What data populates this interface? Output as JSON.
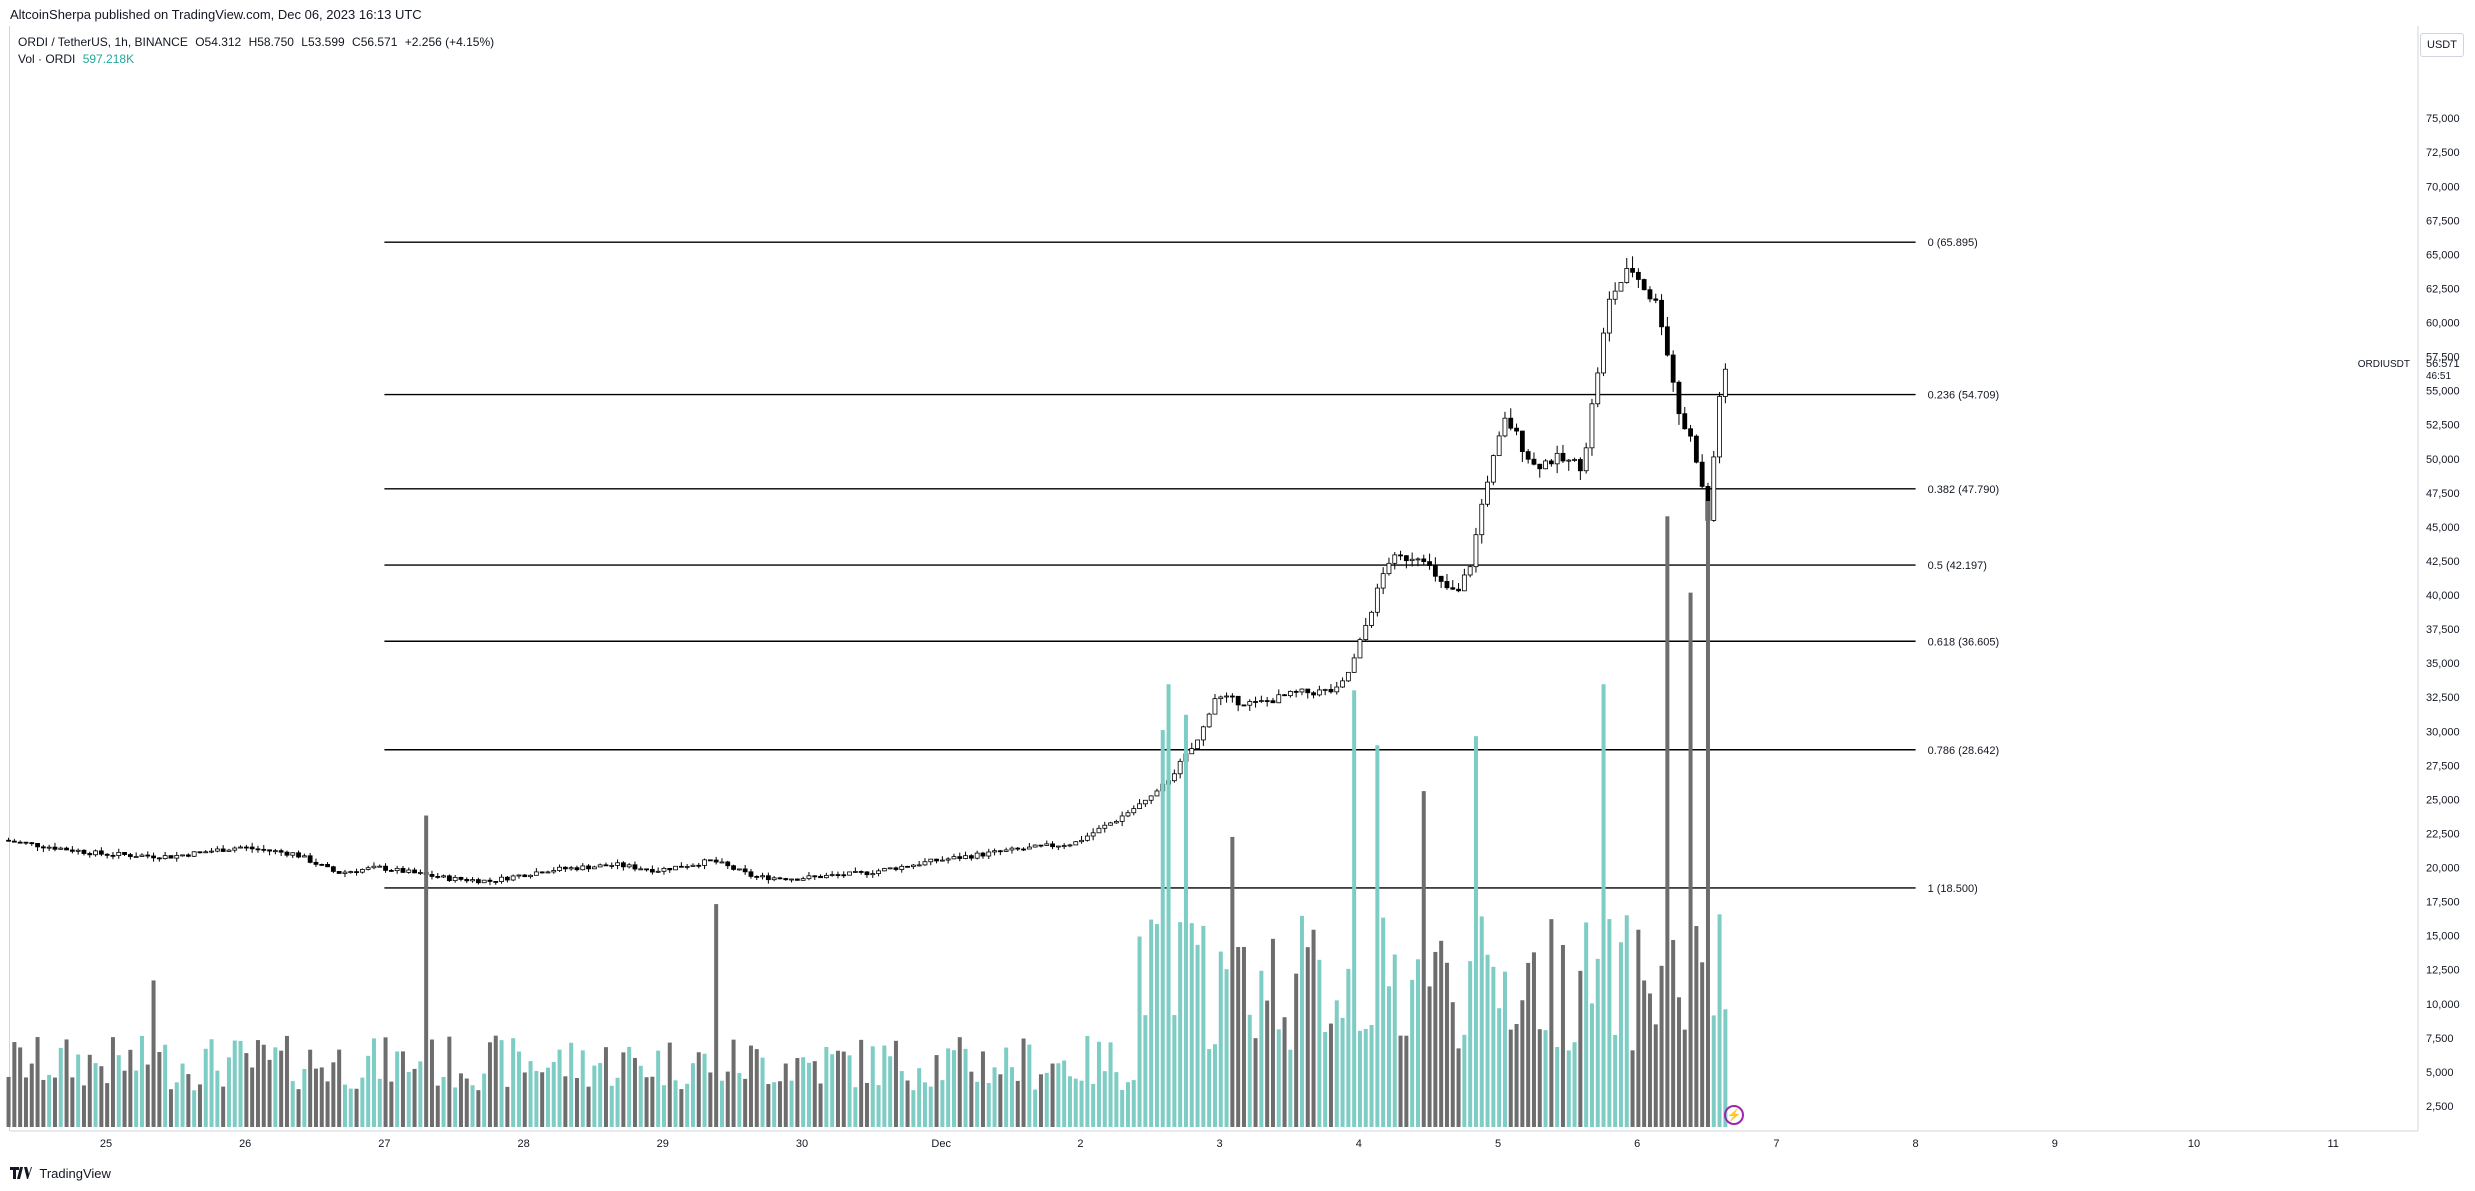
{
  "header": {
    "publish_text": "AltcoinSherpa published on TradingView.com, Dec 06, 2023 16:13 UTC"
  },
  "legend": {
    "symbol": "ORDI / TetherUS, 1h, BINANCE",
    "ohlc": {
      "open": "O54.312",
      "high": "H58.750",
      "low": "L53.599",
      "close": "C56.571",
      "change": "+2.256 (+4.15%)"
    },
    "volume_label": "Vol · ORDI",
    "volume_value": "597.218K"
  },
  "price_axis": {
    "unit": "USDT",
    "current_symbol": "ORDIUSDT",
    "current_price": "56.571",
    "countdown": "46:51"
  },
  "footer": {
    "brand": "TradingView"
  },
  "colors": {
    "up_candle": "#ffffff",
    "down_candle": "#000000",
    "volume_up": "#7ecdc5",
    "volume_down": "#6d6d6d",
    "fib_line": "#000000"
  },
  "chart_data": {
    "type": "candlestick",
    "ylim": [
      0,
      80000
    ],
    "y_ticks": [
      "2,500",
      "5,000",
      "7,500",
      "10,000",
      "12,500",
      "15,000",
      "17,500",
      "20,000",
      "22,500",
      "25,000",
      "27,500",
      "30,000",
      "32,500",
      "35,000",
      "37,500",
      "40,000",
      "42,500",
      "45,000",
      "47,500",
      "50,000",
      "52,500",
      "55,000",
      "57,500",
      "60,000",
      "62,500",
      "65,000",
      "67,500",
      "70,000",
      "72,500",
      "75,000"
    ],
    "y_tick_values": [
      2500,
      5000,
      7500,
      10000,
      12500,
      15000,
      17500,
      20000,
      22500,
      25000,
      27500,
      30000,
      32500,
      35000,
      37500,
      40000,
      42500,
      45000,
      47500,
      50000,
      52500,
      55000,
      57500,
      60000,
      62500,
      65000,
      67500,
      70000,
      72500,
      75000
    ],
    "x_ticks": [
      {
        "label": "25",
        "day": 25
      },
      {
        "label": "26",
        "day": 26
      },
      {
        "label": "27",
        "day": 27
      },
      {
        "label": "28",
        "day": 28
      },
      {
        "label": "29",
        "day": 29
      },
      {
        "label": "30",
        "day": 30
      },
      {
        "label": "Dec",
        "day": 31
      },
      {
        "label": "2",
        "day": 32
      },
      {
        "label": "3",
        "day": 33
      },
      {
        "label": "4",
        "day": 34
      },
      {
        "label": "5",
        "day": 35
      },
      {
        "label": "6",
        "day": 36
      },
      {
        "label": "7",
        "day": 37
      },
      {
        "label": "8",
        "day": 38
      },
      {
        "label": "9",
        "day": 39
      },
      {
        "label": "10",
        "day": 40
      },
      {
        "label": "11",
        "day": 41
      }
    ],
    "x_range_days": [
      24.3,
      41.6
    ],
    "fib_levels": [
      {
        "label": "0 (65.895)",
        "value": 65895
      },
      {
        "label": "0.236 (54.709)",
        "value": 54709
      },
      {
        "label": "0.382 (47.790)",
        "value": 47790
      },
      {
        "label": "0.5 (42.197)",
        "value": 42197
      },
      {
        "label": "0.618 (36.605)",
        "value": 36605
      },
      {
        "label": "0.786 (28.642)",
        "value": 28642
      },
      {
        "label": "1 (18.500)",
        "value": 18500
      }
    ],
    "fib_start_day": 27.0,
    "fib_end_day": 38.0,
    "price_path_days": [
      24.3,
      25.0,
      25.5,
      26.0,
      26.4,
      26.7,
      27.0,
      27.5,
      27.8,
      28.2,
      28.7,
      29.0,
      29.4,
      29.7,
      30.0,
      30.5,
      31.0,
      31.5,
      32.0,
      32.3,
      32.6,
      32.9,
      33.0,
      33.3,
      33.6,
      33.9,
      34.0,
      34.1,
      34.25,
      34.5,
      34.6,
      34.75,
      34.85,
      34.95,
      35.1,
      35.3,
      35.45,
      35.65,
      35.75,
      35.85,
      36.0,
      36.2,
      36.35,
      36.45,
      36.55,
      36.65
    ],
    "price_path_values": [
      22000,
      21000,
      20800,
      21500,
      21000,
      19600,
      20000,
      19200,
      19000,
      19800,
      20200,
      19800,
      20500,
      19300,
      19200,
      19600,
      20500,
      21200,
      21800,
      23500,
      25500,
      29500,
      32500,
      32000,
      32800,
      33000,
      35000,
      38000,
      42500,
      43000,
      41000,
      40000,
      42500,
      48000,
      53000,
      49500,
      50000,
      49500,
      56000,
      62000,
      64000,
      61000,
      53000,
      51000,
      45500,
      56571
    ],
    "volume_ylim": [
      0,
      28000
    ],
    "volume_spikes": [
      {
        "day": 25.35,
        "value": 4800,
        "up": true
      },
      {
        "day": 27.3,
        "value": 10200,
        "up": true
      },
      {
        "day": 29.4,
        "value": 7300,
        "up": true
      },
      {
        "day": 32.6,
        "value": 13000,
        "up": true
      },
      {
        "day": 32.65,
        "value": 14500,
        "up": true
      },
      {
        "day": 32.75,
        "value": 13500,
        "up": true
      },
      {
        "day": 33.1,
        "value": 9500,
        "up": false
      },
      {
        "day": 33.95,
        "value": 14300,
        "up": true
      },
      {
        "day": 34.15,
        "value": 12500,
        "up": true
      },
      {
        "day": 34.45,
        "value": 11000,
        "up": false
      },
      {
        "day": 34.85,
        "value": 12800,
        "up": true
      },
      {
        "day": 35.75,
        "value": 14500,
        "up": true
      },
      {
        "day": 36.2,
        "value": 20000,
        "up": false
      },
      {
        "day": 36.4,
        "value": 17500,
        "up": false
      },
      {
        "day": 36.5,
        "value": 20500,
        "up": false
      },
      {
        "day": 36.7,
        "value": 16500,
        "up": true
      }
    ]
  }
}
